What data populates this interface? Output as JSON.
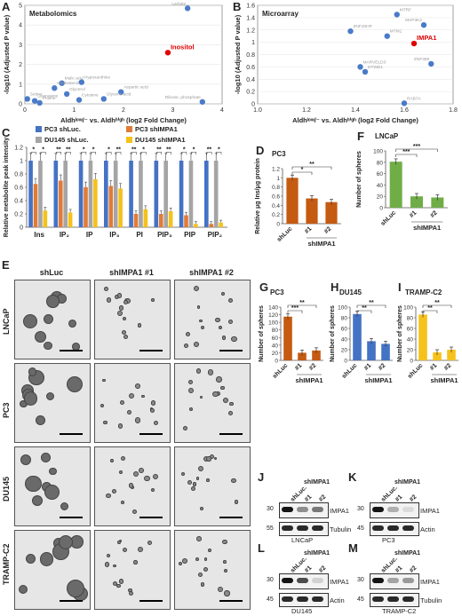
{
  "labels": {
    "A": "A",
    "B": "B",
    "C": "C",
    "D": "D",
    "E": "E",
    "F": "F",
    "G": "G",
    "H": "H",
    "I": "I",
    "J": "J",
    "K": "K",
    "L": "L",
    "M": "M"
  },
  "colors": {
    "blue": "#4472c4",
    "orange": "#e07b39",
    "gray": "#a5a5a5",
    "yellow": "#f5c21b",
    "green": "#70ad47",
    "brown": "#c55a11",
    "red": "#e00000",
    "dot": "#4a7bc8",
    "label_gray": "#9a9a9a"
  },
  "volcano_A": {
    "panel_title": "Metabolomics",
    "ylabel": "-log10 (Adjusted P value)",
    "xlabel": "Aldhˡᵒʷ/⁻ vs. Aldhʰⁱᵍʰ (log2 Fold Change)",
    "x_ticks": [
      "0",
      "1",
      "2",
      "3",
      "4"
    ],
    "y_ticks": [
      "0",
      "1",
      "2",
      "3",
      "4",
      "5"
    ],
    "highlight": "Inositol",
    "points": [
      {
        "name": "Lactate",
        "x": 3.3,
        "y": 4.85,
        "hl": false
      },
      {
        "name": "Inositol",
        "x": 2.9,
        "y": 2.6,
        "hl": true
      },
      {
        "name": "Hypoxanthine",
        "x": 1.15,
        "y": 1.1,
        "hl": false
      },
      {
        "name": "Malic acid",
        "x": 0.75,
        "y": 1.05,
        "hl": false
      },
      {
        "name": "Cholesterol",
        "x": 0.6,
        "y": 0.8,
        "hl": false
      },
      {
        "name": "Aspartic acid",
        "x": 1.95,
        "y": 0.6,
        "hl": false
      },
      {
        "name": "Glycerol",
        "x": 0.85,
        "y": 0.5,
        "hl": false
      },
      {
        "name": "Ribose, phosphate",
        "x": 3.6,
        "y": 0.1,
        "hl": false
      },
      {
        "name": "Guanosine",
        "x": 0.2,
        "y": 0.15,
        "hl": false
      },
      {
        "name": "Serine",
        "x": 0.05,
        "y": 0.25,
        "hl": false
      },
      {
        "name": "Proline",
        "x": 0.3,
        "y": 0.05,
        "hl": false
      },
      {
        "name": "Cytosine",
        "x": 1.1,
        "y": 0.2,
        "hl": false
      },
      {
        "name": "Glyceric acid",
        "x": 1.6,
        "y": 0.25,
        "hl": false
      }
    ]
  },
  "volcano_B": {
    "panel_title": "Microarray",
    "ylabel": "-log10 (Adjusted P value)",
    "xlabel": "Aldhˡᵒʷ/⁻ vs. Aldhʰⁱᵍʰ (log2 Fold Change)",
    "x_ticks": [
      "1.0",
      "1.2",
      "1.4",
      "1.6",
      "1.8"
    ],
    "y_ticks": [
      "0",
      "0.2",
      "0.4",
      "0.6",
      "0.8",
      "1",
      "1.2",
      "1.4",
      "1.6"
    ],
    "highlight": "IMPA1",
    "points": [
      {
        "name": "MTRF",
        "x": 1.57,
        "y": 1.45,
        "hl": false
      },
      {
        "name": "MAP3K2",
        "x": 1.68,
        "y": 1.28,
        "hl": false
      },
      {
        "name": "ZNF20HP",
        "x": 1.38,
        "y": 1.18,
        "hl": false
      },
      {
        "name": "MTM1",
        "x": 1.53,
        "y": 1.1,
        "hl": false
      },
      {
        "name": "IMPA1",
        "x": 1.64,
        "y": 0.98,
        "hl": true
      },
      {
        "name": "ZNF385",
        "x": 1.71,
        "y": 0.65,
        "hl": false
      },
      {
        "name": "MARVELD3",
        "x": 1.42,
        "y": 0.6,
        "hl": false
      },
      {
        "name": "DTWD1",
        "x": 1.44,
        "y": 0.52,
        "hl": false
      },
      {
        "name": "RAB7A",
        "x": 1.6,
        "y": 0.01,
        "hl": false
      }
    ]
  },
  "chart_C": {
    "ylabel": "Relative metabolite peak intensity",
    "legend": [
      "PC3 shLuc.",
      "PC3 shIMPA1",
      "DU145 shLuc.",
      "DU145 shIMPA1"
    ],
    "categories": [
      "Ins",
      "IP₂",
      "IP",
      "IP₃",
      "PI",
      "PIP₃",
      "PIP",
      "PIP₂"
    ],
    "stars": [
      "*",
      "*",
      "**",
      "**",
      "*",
      "*",
      "*",
      "**",
      "**",
      "*",
      "**",
      "**",
      "*",
      "*",
      "**",
      "*"
    ],
    "y_ticks": [
      "0",
      "0.2",
      "0.4",
      "0.6",
      "0.8",
      "1",
      "1.2"
    ],
    "series": [
      {
        "name": "PC3 shLuc.",
        "values": [
          1,
          1,
          1,
          1,
          1,
          1,
          1,
          1
        ]
      },
      {
        "name": "PC3 shIMPA1",
        "values": [
          0.65,
          0.7,
          0.6,
          0.62,
          0.2,
          0.2,
          0.18,
          0.05
        ]
      },
      {
        "name": "DU145 shLuc.",
        "values": [
          1,
          1,
          1,
          1,
          1,
          1,
          1,
          1
        ]
      },
      {
        "name": "DU145 shIMPA1",
        "values": [
          0.25,
          0.22,
          0.72,
          0.58,
          0.27,
          0.24,
          0.05,
          0.07
        ]
      }
    ]
  },
  "chart_D": {
    "cell": "PC3",
    "ylabel": "Relative μg Ins/μg protein",
    "categories": [
      "shLuc",
      "#1",
      "#2"
    ],
    "group": "shIMPA1",
    "values": [
      1.0,
      0.55,
      0.47
    ],
    "y_ticks": [
      "0",
      "0.2",
      "0.4",
      "0.6",
      "0.8",
      "1",
      "1.2"
    ],
    "ymax": 1.2,
    "sig": [
      "*",
      "**"
    ]
  },
  "chart_F": {
    "cell": "LNCaP",
    "ylabel": "Number of spheres",
    "categories": [
      "shLuc",
      "#1",
      "#2"
    ],
    "group": "shIMPA1",
    "values": [
      81,
      20,
      18
    ],
    "y_ticks": [
      "0",
      "20",
      "40",
      "60",
      "80",
      "100"
    ],
    "ymax": 100,
    "sig": [
      "***",
      "***"
    ]
  },
  "chart_G": {
    "cell": "PC3",
    "ylabel": "Number of spheres",
    "categories": [
      "shLuc",
      "#1",
      "#2"
    ],
    "group": "shIMPA1",
    "values": [
      115,
      20,
      26
    ],
    "y_ticks": [
      "0",
      "20",
      "40",
      "60",
      "80",
      "100",
      "120",
      "140"
    ],
    "ymax": 140,
    "sig": [
      "***",
      "**"
    ]
  },
  "chart_H": {
    "cell": "DU145",
    "ylabel": "Number of spheres",
    "categories": [
      "shLuc",
      "#1",
      "#2"
    ],
    "group": "shIMPA1",
    "values": [
      87,
      36,
      31
    ],
    "y_ticks": [
      "0",
      "20",
      "40",
      "60",
      "80",
      "100"
    ],
    "ymax": 100,
    "sig": [
      "**",
      "**"
    ]
  },
  "chart_I": {
    "cell": "TRAMP-C2",
    "ylabel": "Number of spheres",
    "categories": [
      "shLuc",
      "#1",
      "#2"
    ],
    "group": "shIMPA1",
    "values": [
      86,
      15,
      20
    ],
    "y_ticks": [
      "0",
      "20",
      "40",
      "60",
      "80",
      "100"
    ],
    "ymax": 100,
    "sig": [
      "**",
      "**"
    ]
  },
  "panel_E": {
    "cols": [
      "shLuc",
      "shIMPA1 #1",
      "shIMPA1 #2"
    ],
    "rows": [
      "LNCaP",
      "PC3",
      "DU145",
      "TRAMP-C2"
    ]
  },
  "blots": {
    "J": {
      "cell": "LNCaP",
      "protein": "IMPA1",
      "loading": "Tubulin",
      "m1": "30",
      "m2": "55",
      "lanes": [
        "shLuc.",
        "#1",
        "#2"
      ],
      "group": "shIMPA1"
    },
    "K": {
      "cell": "PC3",
      "protein": "IMPA1",
      "loading": "Actin",
      "m1": "30",
      "m2": "45",
      "lanes": [
        "shLuc.",
        "#1",
        "#2"
      ],
      "group": "shIMPA1"
    },
    "L": {
      "cell": "DU145",
      "protein": "IMPA1",
      "loading": "Actin",
      "m1": "30",
      "m2": "45",
      "lanes": [
        "shLuc.",
        "#1",
        "#2"
      ],
      "group": "shIMPA1"
    },
    "M": {
      "cell": "TRAMP-C2",
      "protein": "IMPA1",
      "loading": "Tubulin",
      "m1": "30",
      "m2": "45",
      "lanes": [
        "shLuc.",
        "#1",
        "#2"
      ],
      "group": "shIMPA1"
    }
  }
}
